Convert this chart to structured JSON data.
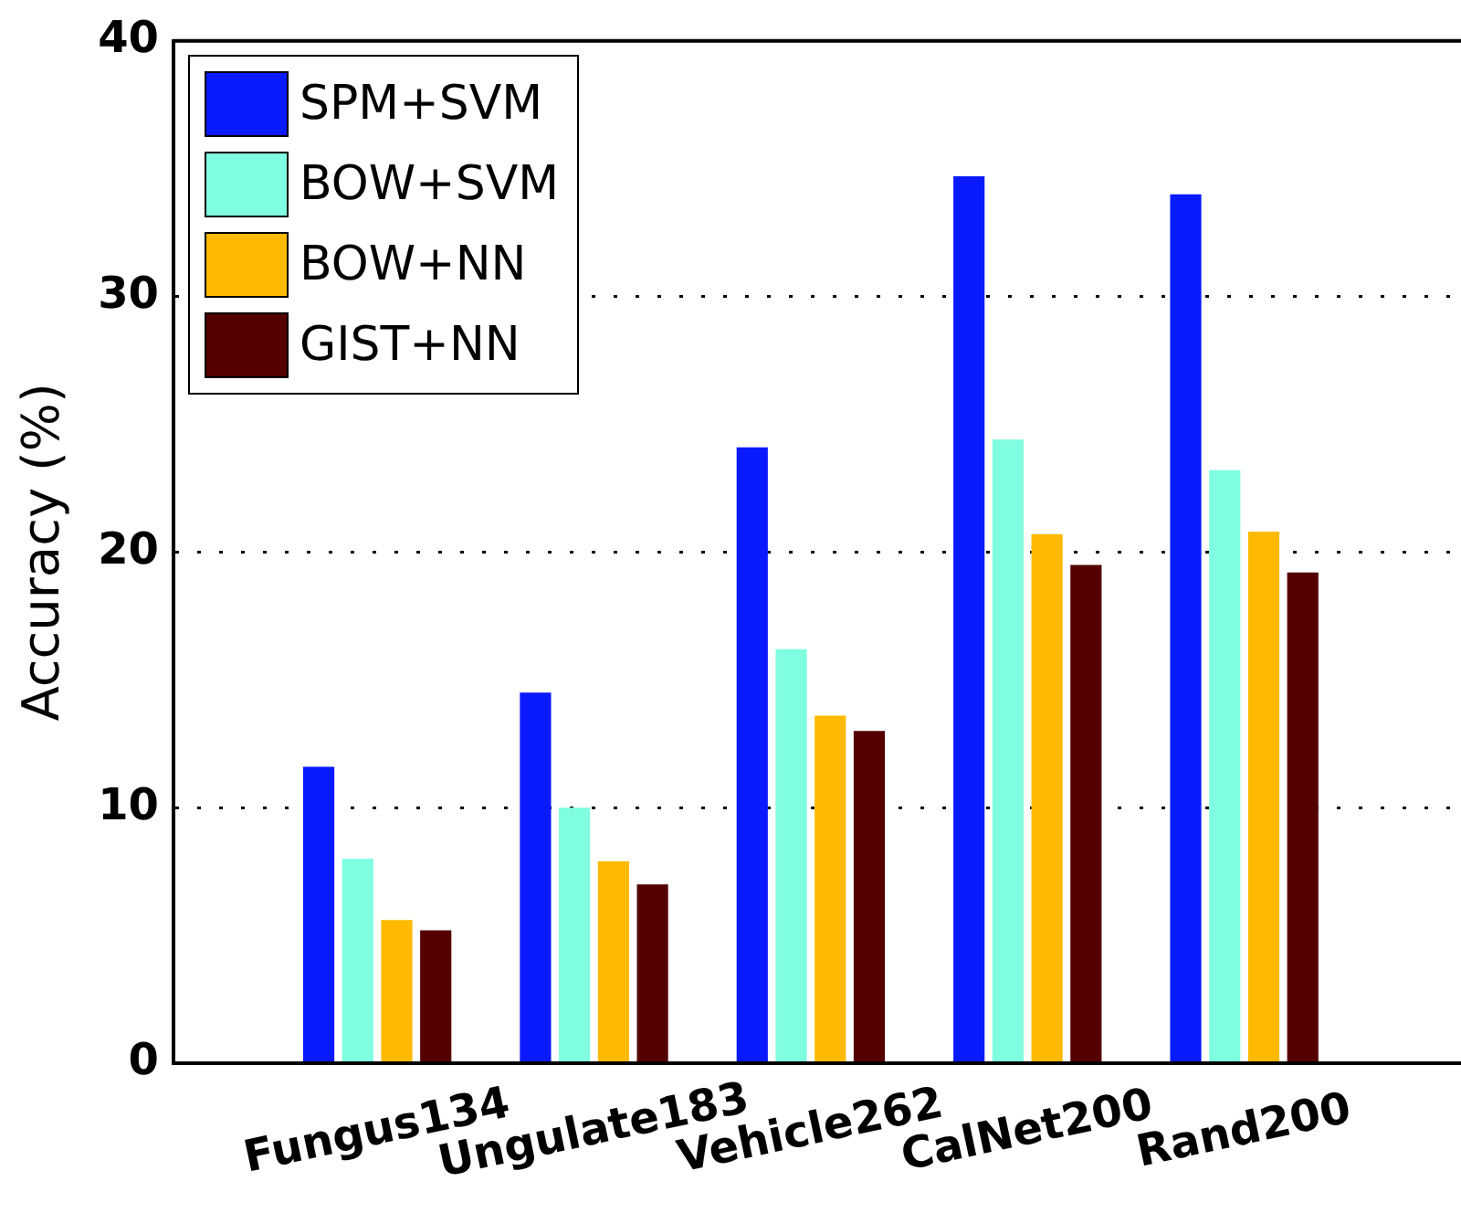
{
  "chart_data": {
    "type": "bar",
    "ylabel": "Accuracy (%)",
    "categories": [
      "Fungus134",
      "Ungulate183",
      "Vehicle262",
      "CalNet200",
      "Rand200"
    ],
    "series": [
      {
        "name": "SPM+SVM",
        "color": "#0a1aff",
        "values": [
          11.6,
          14.5,
          24.1,
          34.7,
          34.0
        ]
      },
      {
        "name": "BOW+SVM",
        "color": "#7fffdf",
        "values": [
          8.0,
          10.0,
          16.2,
          24.4,
          23.2
        ]
      },
      {
        "name": "BOW+NN",
        "color": "#ffba00",
        "values": [
          5.6,
          7.9,
          13.6,
          20.7,
          20.8
        ]
      },
      {
        "name": "GIST+NN",
        "color": "#550000",
        "values": [
          5.2,
          7.0,
          13.0,
          19.5,
          19.2
        ]
      }
    ],
    "ylim": [
      0,
      40
    ],
    "yticks": [
      0,
      10,
      20,
      30,
      40
    ],
    "grid": "y",
    "legend": "top left"
  }
}
